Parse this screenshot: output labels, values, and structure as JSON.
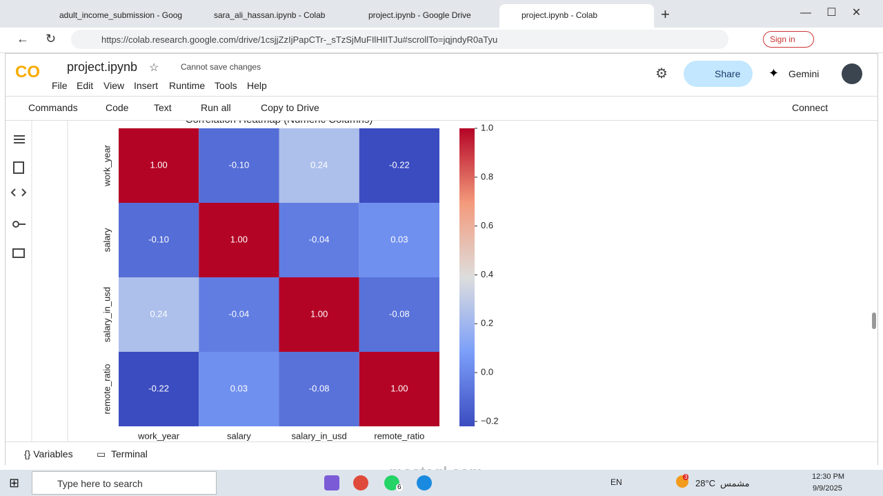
{
  "browser": {
    "tabs": [
      "adult_income_submission - Goog",
      "sara_ali_hassan.ipynb - Colab",
      "project.ipynb - Google Drive",
      "project.ipynb - Colab"
    ],
    "url": "https://colab.research.google.com/drive/1csjjZzIjPapCTr-_sTzSjMuFIlHIITJu#scrollTo=jqjndyR0aTyu",
    "sign_in": "Sign in"
  },
  "colab": {
    "notebook": "project.ipynb",
    "status": "Cannot save changes",
    "menu": [
      "File",
      "Edit",
      "View",
      "Insert",
      "Runtime",
      "Tools",
      "Help"
    ],
    "share": "Share",
    "gemini": "Gemini",
    "toolbar": [
      "Commands",
      "Code",
      "Text",
      "Run all",
      "Copy to Drive"
    ],
    "connect": "Connect",
    "bottom": [
      "Variables",
      "Terminal"
    ]
  },
  "chart_data": {
    "type": "heatmap",
    "title": "Correlation Heatmap (Numeric Columns)",
    "x_categories": [
      "work_year",
      "salary",
      "salary_in_usd",
      "remote_ratio"
    ],
    "y_categories": [
      "work_year",
      "salary",
      "salary_in_usd",
      "remote_ratio"
    ],
    "values": [
      [
        1,
        -0.1,
        0.24,
        -0.22
      ],
      [
        -0.1,
        1,
        -0.04,
        0.03
      ],
      [
        0.24,
        -0.04,
        1,
        -0.08
      ],
      [
        -0.22,
        0.03,
        -0.08,
        1
      ]
    ],
    "value_labels": [
      [
        "1.00",
        "-0.10",
        "0.24",
        "-0.22"
      ],
      [
        "-0.10",
        "1.00",
        "-0.04",
        "0.03"
      ],
      [
        "0.24",
        "-0.04",
        "1.00",
        "-0.08"
      ],
      [
        "-0.22",
        "0.03",
        "-0.08",
        "1.00"
      ]
    ],
    "colormap": "coolwarm",
    "clim": [
      -0.22,
      1.0
    ],
    "cticks": [
      {
        "value": 1,
        "label": "1.0"
      },
      {
        "value": 0.8,
        "label": "0.8"
      },
      {
        "value": 0.6,
        "label": "0.6"
      },
      {
        "value": 0.4,
        "label": "0.4"
      },
      {
        "value": 0.2,
        "label": "0.2"
      },
      {
        "value": 0,
        "label": "0.0"
      },
      {
        "value": -0.2,
        "label": "−0.2"
      }
    ]
  },
  "taskbar": {
    "search": "Type here to search",
    "badge": "6",
    "weather_badge": "3",
    "lang": "EN",
    "temperature": "28°C",
    "weather": "مشمس",
    "time": "12:30 PM",
    "date": "9/9/2025",
    "watermark": "mostaql.com"
  }
}
